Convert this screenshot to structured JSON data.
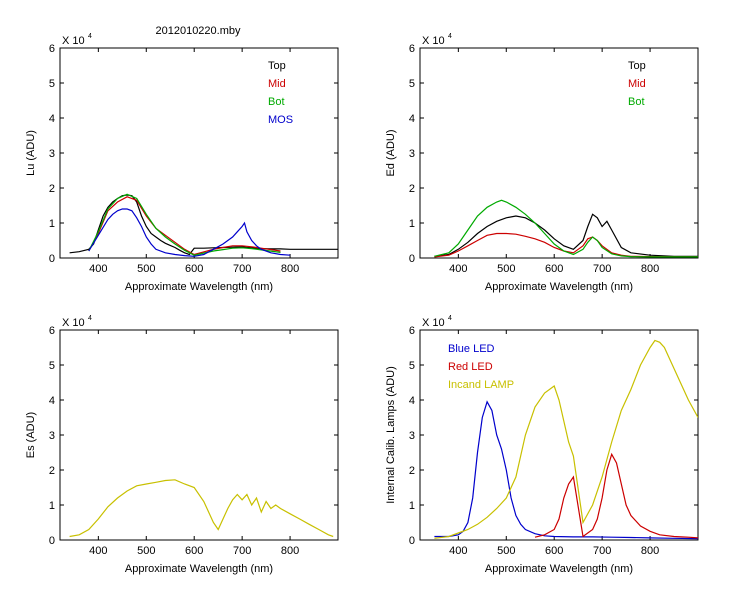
{
  "figure_title": "2012010220.mby",
  "colors": {
    "top": "#000000",
    "mid": "#cc0000",
    "bot": "#00aa00",
    "mos": "#0000cc",
    "es": "#c8c000",
    "blue_led": "#0000cc",
    "red_led": "#cc0000",
    "incand": "#c8c000"
  },
  "chart_data": [
    {
      "id": "lu",
      "type": "line",
      "title": "2012010220.mby",
      "xlabel": "Approximate Wavelength (nm)",
      "ylabel": "Lu (ADU)",
      "multiplier": "X 10",
      "exponent": "4",
      "xlim": [
        320,
        900
      ],
      "ylim": [
        0,
        60000
      ],
      "xticks": [
        "400",
        "500",
        "600",
        "700",
        "800"
      ],
      "yticks": [
        "0",
        "1",
        "2",
        "3",
        "4",
        "5",
        "6"
      ],
      "legend": [
        "Top",
        "Mid",
        "Bot",
        "MOS"
      ],
      "series": [
        {
          "name": "Top",
          "color": "#000000",
          "x": [
            340,
            360,
            380,
            390,
            400,
            410,
            420,
            430,
            440,
            450,
            460,
            470,
            480,
            490,
            500,
            510,
            520,
            530,
            540,
            550,
            560,
            570,
            580,
            590,
            600,
            620,
            640,
            660,
            680,
            700,
            720,
            740,
            760,
            780,
            800,
            820,
            840,
            860,
            880,
            900
          ],
          "y": [
            1500,
            1800,
            2500,
            4000,
            8000,
            12000,
            14500,
            16000,
            17000,
            17800,
            18000,
            17800,
            16000,
            12000,
            9000,
            7000,
            6000,
            5000,
            4200,
            3600,
            3000,
            2200,
            1500,
            1000,
            2800,
            2800,
            2900,
            3000,
            3100,
            3200,
            2900,
            2700,
            2600,
            2600,
            2500,
            2500,
            2500,
            2500,
            2500,
            2500
          ]
        },
        {
          "name": "Mid",
          "color": "#cc0000",
          "x": [
            380,
            400,
            420,
            440,
            460,
            480,
            500,
            520,
            540,
            560,
            580,
            600,
            640,
            660,
            680,
            700,
            720,
            740,
            780
          ],
          "y": [
            2000,
            7000,
            13500,
            16000,
            17500,
            16500,
            12000,
            8500,
            6500,
            4500,
            2500,
            1000,
            2500,
            3000,
            3500,
            3500,
            3200,
            2800,
            2000
          ]
        },
        {
          "name": "Bot",
          "color": "#00aa00",
          "x": [
            380,
            400,
            420,
            440,
            460,
            480,
            500,
            520,
            540,
            560,
            580,
            600,
            640,
            660,
            680,
            700,
            720,
            740,
            780
          ],
          "y": [
            2000,
            7500,
            14000,
            17000,
            18200,
            17000,
            12500,
            8500,
            6000,
            4000,
            2200,
            800,
            2000,
            2400,
            2800,
            2900,
            2700,
            2300,
            1600
          ]
        },
        {
          "name": "MOS",
          "color": "#0000cc",
          "x": [
            380,
            400,
            420,
            430,
            440,
            450,
            460,
            470,
            480,
            490,
            500,
            510,
            520,
            540,
            560,
            580,
            600,
            620,
            640,
            660,
            680,
            690,
            700,
            705,
            710,
            720,
            730,
            740,
            760,
            780,
            800
          ],
          "y": [
            2000,
            6500,
            11000,
            12500,
            13500,
            14000,
            14000,
            13500,
            11500,
            9000,
            6000,
            4000,
            2500,
            1500,
            1000,
            700,
            500,
            1000,
            2500,
            4000,
            6000,
            7500,
            9000,
            10000,
            7500,
            5000,
            3500,
            2500,
            1500,
            1000,
            800
          ]
        }
      ]
    },
    {
      "id": "ed",
      "type": "line",
      "title": "",
      "xlabel": "Approximate Wavelength (nm)",
      "ylabel": "Ed  (ADU)",
      "multiplier": "X 10",
      "exponent": "4",
      "xlim": [
        320,
        900
      ],
      "ylim": [
        0,
        60000
      ],
      "xticks": [
        "400",
        "500",
        "600",
        "700",
        "800"
      ],
      "yticks": [
        "0",
        "1",
        "2",
        "3",
        "4",
        "5",
        "6"
      ],
      "legend": [
        "Top",
        "Mid",
        "Bot"
      ],
      "series": [
        {
          "name": "Top",
          "color": "#000000",
          "x": [
            350,
            380,
            400,
            420,
            440,
            460,
            480,
            500,
            520,
            540,
            560,
            580,
            600,
            620,
            640,
            660,
            670,
            680,
            690,
            700,
            710,
            720,
            740,
            760,
            800,
            850,
            900
          ],
          "y": [
            500,
            1000,
            2500,
            4500,
            7000,
            9000,
            10500,
            11500,
            12000,
            11500,
            10000,
            8000,
            5500,
            3500,
            2500,
            5000,
            9000,
            12500,
            11500,
            9000,
            10500,
            8000,
            3000,
            1500,
            800,
            500,
            500
          ]
        },
        {
          "name": "Mid",
          "color": "#cc0000",
          "x": [
            350,
            380,
            400,
            420,
            440,
            460,
            480,
            500,
            520,
            540,
            560,
            580,
            600,
            620,
            640,
            660,
            670,
            680,
            690,
            700,
            720,
            740,
            760,
            800,
            850,
            900
          ],
          "y": [
            300,
            800,
            2000,
            3500,
            5000,
            6500,
            7000,
            7000,
            6800,
            6200,
            5500,
            4500,
            3000,
            2000,
            1500,
            3500,
            5500,
            6000,
            5000,
            3500,
            1500,
            800,
            500,
            400,
            300,
            300
          ]
        },
        {
          "name": "Bot",
          "color": "#00aa00",
          "x": [
            350,
            380,
            400,
            420,
            440,
            460,
            480,
            490,
            500,
            520,
            540,
            560,
            580,
            600,
            620,
            640,
            660,
            670,
            680,
            690,
            700,
            720,
            740,
            760,
            800,
            850,
            900
          ],
          "y": [
            500,
            1500,
            4000,
            8000,
            12000,
            14500,
            16000,
            16500,
            16000,
            14500,
            12500,
            10000,
            7000,
            4000,
            2000,
            1000,
            2500,
            4500,
            6000,
            5000,
            3000,
            1200,
            600,
            400,
            300,
            300,
            300
          ]
        }
      ]
    },
    {
      "id": "es",
      "type": "line",
      "title": "",
      "xlabel": "Approximate Wavelength (nm)",
      "ylabel": "Es  (ADU)",
      "multiplier": "X 10",
      "exponent": "4",
      "xlim": [
        320,
        900
      ],
      "ylim": [
        0,
        60000
      ],
      "xticks": [
        "400",
        "500",
        "600",
        "700",
        "800"
      ],
      "yticks": [
        "0",
        "1",
        "2",
        "3",
        "4",
        "5",
        "6"
      ],
      "legend": [],
      "series": [
        {
          "name": "Es",
          "color": "#c8c000",
          "x": [
            340,
            360,
            380,
            400,
            420,
            440,
            460,
            480,
            500,
            520,
            540,
            560,
            580,
            600,
            620,
            640,
            650,
            660,
            670,
            680,
            690,
            700,
            710,
            720,
            730,
            740,
            750,
            760,
            770,
            780,
            800,
            820,
            840,
            860,
            880,
            890
          ],
          "y": [
            1000,
            1500,
            3000,
            6000,
            9500,
            12000,
            14000,
            15500,
            16000,
            16500,
            17000,
            17200,
            16000,
            15000,
            11000,
            5000,
            3000,
            6000,
            9000,
            11500,
            13000,
            11500,
            13000,
            10000,
            12000,
            8000,
            11000,
            9000,
            10000,
            9000,
            7500,
            6000,
            4500,
            3000,
            1500,
            1000
          ]
        }
      ]
    },
    {
      "id": "lamps",
      "type": "line",
      "title": "",
      "xlabel": "Approximate Wavelength (nm)",
      "ylabel": "Internal Calib. Lamps (ADU)",
      "multiplier": "X 10",
      "exponent": "4",
      "xlim": [
        320,
        900
      ],
      "ylim": [
        0,
        60000
      ],
      "xticks": [
        "400",
        "500",
        "600",
        "700",
        "800"
      ],
      "yticks": [
        "0",
        "1",
        "2",
        "3",
        "4",
        "5",
        "6"
      ],
      "legend": [
        "Blue LED",
        "Red LED",
        "Incand LAMP"
      ],
      "series": [
        {
          "name": "Blue LED",
          "color": "#0000cc",
          "x": [
            350,
            380,
            400,
            410,
            420,
            430,
            440,
            450,
            460,
            470,
            480,
            490,
            500,
            510,
            520,
            530,
            540,
            560,
            580,
            600,
            640,
            680,
            720,
            760,
            800,
            850,
            900
          ],
          "y": [
            1000,
            1000,
            1500,
            2500,
            5000,
            12000,
            25000,
            35000,
            39500,
            37000,
            30000,
            26000,
            20000,
            12000,
            7000,
            4500,
            3000,
            1800,
            1200,
            1000,
            900,
            900,
            800,
            700,
            600,
            500,
            400
          ]
        },
        {
          "name": "Red LED",
          "color": "#cc0000",
          "x": [
            560,
            580,
            600,
            610,
            620,
            630,
            640,
            660,
            680,
            690,
            700,
            710,
            720,
            730,
            740,
            750,
            760,
            780,
            800,
            820,
            850,
            880,
            900
          ],
          "y": [
            800,
            1500,
            3000,
            6000,
            12000,
            16000,
            18000,
            1000,
            3000,
            6000,
            12000,
            20000,
            24500,
            22000,
            16000,
            10000,
            7000,
            4000,
            2500,
            1500,
            1000,
            800,
            600
          ]
        },
        {
          "name": "Incand LAMP",
          "color": "#c8c000",
          "x": [
            350,
            380,
            400,
            420,
            440,
            460,
            480,
            500,
            510,
            520,
            540,
            560,
            580,
            600,
            610,
            620,
            630,
            640,
            660,
            680,
            700,
            720,
            740,
            760,
            780,
            800,
            810,
            820,
            830,
            840,
            860,
            880,
            900
          ],
          "y": [
            500,
            1000,
            2000,
            3000,
            4500,
            6500,
            9000,
            12000,
            15000,
            18000,
            30000,
            38000,
            42000,
            44000,
            40000,
            34000,
            28000,
            24000,
            5000,
            10000,
            18000,
            28000,
            37000,
            43000,
            50000,
            55000,
            57000,
            56500,
            55000,
            52000,
            46000,
            40000,
            35000
          ]
        }
      ]
    }
  ]
}
